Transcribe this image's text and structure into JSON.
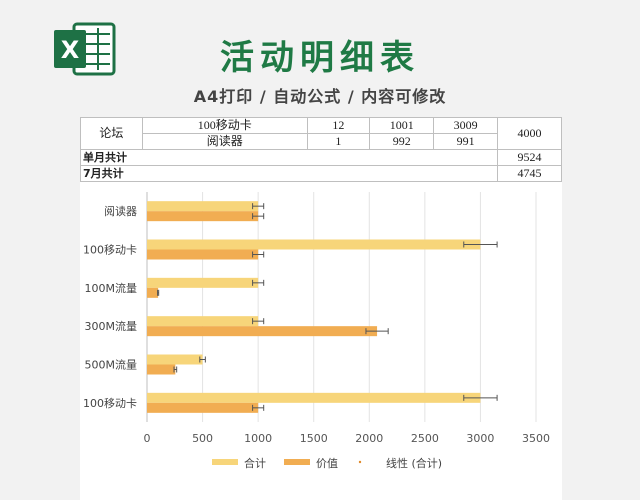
{
  "header": {
    "title": "活动明细表",
    "subtitle": "A4打印 / 自动公式 / 内容可修改",
    "logo_letter": "X",
    "logo_color": "#1e7145"
  },
  "table": {
    "group_label": "论坛",
    "rows": [
      {
        "item": "100移动卡",
        "qty": "12",
        "v1": "1001",
        "v2": "3009"
      },
      {
        "item": "阅读器",
        "qty": "1",
        "v1": "992",
        "v2": "991"
      }
    ],
    "group_total": "4000",
    "summary": [
      {
        "label": "单月共计",
        "value": "9524"
      },
      {
        "label": "7月共计",
        "value": "4745"
      }
    ]
  },
  "chart_data": {
    "type": "bar",
    "orientation": "horizontal",
    "categories": [
      "阅读器",
      "100移动卡",
      "100M流量",
      "300M流量",
      "500M流量",
      "100移动卡"
    ],
    "series": [
      {
        "name": "合计",
        "color": "#f7d57a",
        "values": [
          1000,
          3000,
          1000,
          1000,
          500,
          3000
        ],
        "errors": [
          50,
          150,
          50,
          50,
          25,
          150
        ]
      },
      {
        "name": "价值",
        "color": "#f1ad52",
        "values": [
          1000,
          1000,
          100,
          2070,
          255,
          1000
        ],
        "errors": [
          50,
          50,
          5,
          100,
          12,
          50
        ]
      }
    ],
    "trendline_label": "线性 (合计)",
    "xlim": [
      0,
      3500
    ],
    "xticks": [
      0,
      500,
      1000,
      1500,
      2000,
      2500,
      3000,
      3500
    ],
    "grid": true,
    "legend_position": "bottom"
  }
}
